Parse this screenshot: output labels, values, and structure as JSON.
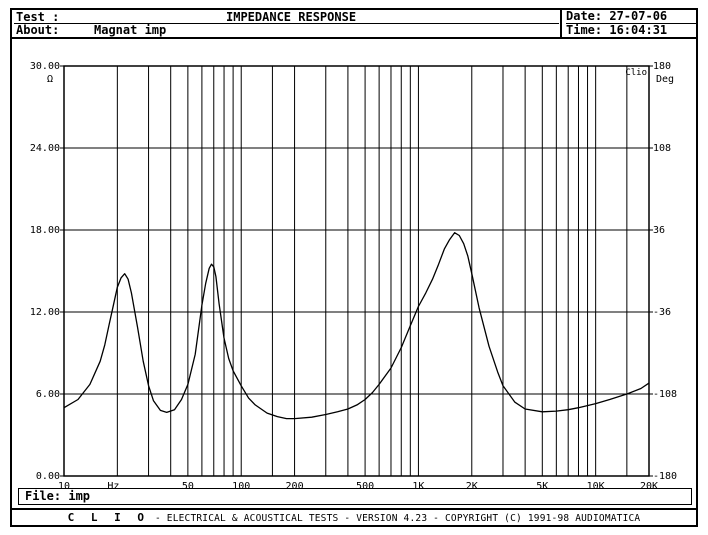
{
  "header": {
    "test_label": "Test :",
    "title": "IMPEDANCE RESPONSE",
    "about_label": "About:",
    "about_value": "Magnat imp",
    "date_label": "Date:",
    "date_value": "27-07-06",
    "time_label": "Time:",
    "time_value": "16:04:31"
  },
  "file": {
    "label": "File:",
    "value": "imp"
  },
  "footer": {
    "brand": "C L I O",
    "text": "- ELECTRICAL & ACOUSTICAL TESTS - VERSION 4.23 - COPYRIGHT (C) 1991-98 AUDIOMATICA"
  },
  "colors": {
    "ink": "#000000",
    "grid": "#000000",
    "background": "#ffffff"
  },
  "chart_data": {
    "type": "line",
    "title": "IMPEDANCE RESPONSE",
    "watermark": "Clio",
    "x_scale": "log",
    "xlim": [
      10,
      20000
    ],
    "ylim": [
      0,
      30
    ],
    "y2lim": [
      -180,
      180
    ],
    "x_unit_label": "Hz",
    "y_unit_label": "Ω",
    "y2_unit_label": "Deg",
    "grid": true,
    "x_ticks": [
      {
        "value": 10,
        "label": "10"
      },
      {
        "value": 50,
        "label": "50"
      },
      {
        "value": 100,
        "label": "100"
      },
      {
        "value": 200,
        "label": "200"
      },
      {
        "value": 500,
        "label": "500"
      },
      {
        "value": 1000,
        "label": "1K"
      },
      {
        "value": 2000,
        "label": "2K"
      },
      {
        "value": 5000,
        "label": "5K"
      },
      {
        "value": 10000,
        "label": "10K"
      },
      {
        "value": 20000,
        "label": "20K"
      }
    ],
    "x_gridlines": [
      20,
      30,
      40,
      50,
      60,
      70,
      80,
      90,
      100,
      150,
      200,
      300,
      400,
      500,
      600,
      700,
      800,
      900,
      1000,
      2000,
      3000,
      4000,
      5000,
      6000,
      7000,
      8000,
      9000,
      10000,
      15000
    ],
    "y_ticks": [
      {
        "value": 0,
        "label": "0.00"
      },
      {
        "value": 6,
        "label": "6.00"
      },
      {
        "value": 12,
        "label": "12.00"
      },
      {
        "value": 18,
        "label": "18.00"
      },
      {
        "value": 24,
        "label": "24.00"
      },
      {
        "value": 30,
        "label": "30.00"
      }
    ],
    "y2_ticks": [
      {
        "value": -180,
        "label": "-180"
      },
      {
        "value": -108,
        "label": "-108"
      },
      {
        "value": -36,
        "label": "-36"
      },
      {
        "value": 36,
        "label": "36"
      },
      {
        "value": 108,
        "label": "108"
      },
      {
        "value": 180,
        "label": "180"
      }
    ],
    "series": [
      {
        "x": [
          10,
          12,
          14,
          16,
          17,
          18,
          19,
          20,
          21,
          22,
          23,
          24,
          26,
          28,
          30,
          32,
          35,
          38,
          42,
          46,
          50,
          55,
          60,
          63,
          66,
          68,
          70,
          72,
          75,
          80,
          85,
          90,
          100,
          110,
          120,
          140,
          160,
          180,
          200,
          250,
          300,
          350,
          400,
          450,
          500,
          550,
          600,
          700,
          800,
          900,
          1000,
          1100,
          1200,
          1300,
          1400,
          1500,
          1600,
          1700,
          1800,
          1900,
          2000,
          2200,
          2500,
          2800,
          3000,
          3500,
          4000,
          5000,
          6000,
          7000,
          8000,
          10000,
          12000,
          15000,
          18000,
          20000
        ],
        "y": [
          5.0,
          5.6,
          6.7,
          8.4,
          9.6,
          11.1,
          12.5,
          13.8,
          14.5,
          14.8,
          14.4,
          13.4,
          10.9,
          8.4,
          6.6,
          5.5,
          4.8,
          4.65,
          4.85,
          5.6,
          6.7,
          8.9,
          12.5,
          14.1,
          15.2,
          15.5,
          15.3,
          14.6,
          12.6,
          10.1,
          8.6,
          7.7,
          6.6,
          5.7,
          5.2,
          4.6,
          4.35,
          4.2,
          4.2,
          4.3,
          4.5,
          4.7,
          4.9,
          5.2,
          5.6,
          6.1,
          6.7,
          7.9,
          9.4,
          11.0,
          12.4,
          13.4,
          14.4,
          15.5,
          16.6,
          17.3,
          17.8,
          17.6,
          17.0,
          16.1,
          14.8,
          12.3,
          9.5,
          7.6,
          6.6,
          5.4,
          4.9,
          4.7,
          4.75,
          4.85,
          5.0,
          5.3,
          5.6,
          6.0,
          6.4,
          6.8
        ]
      }
    ]
  }
}
